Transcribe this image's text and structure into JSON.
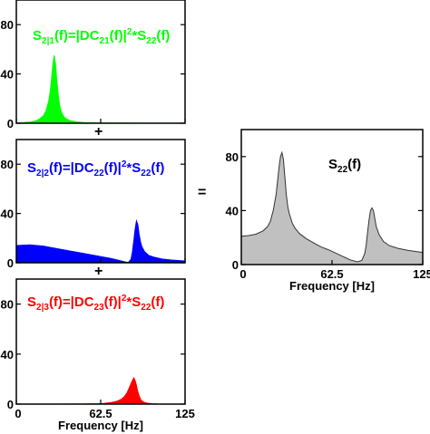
{
  "operators": {
    "plus_1": "+",
    "plus_2": "+",
    "equals": "="
  },
  "chart_data": [
    {
      "type": "area",
      "title_base": "S",
      "title_sub": "2|1",
      "title_mid": "(f)=|DC",
      "title_sub2": "21",
      "title_mid2": "(f)|",
      "title_sup": "2",
      "title_end": "*S",
      "title_sub3": "22",
      "title_tail": "(f)",
      "color": "#00ff00",
      "xlabel": "",
      "ylabel": "",
      "xlim": [
        0,
        125
      ],
      "ylim": [
        0,
        100
      ],
      "xtick_labels": [],
      "ytick_values": [
        0,
        40,
        80
      ],
      "ytick_labels": [
        "0",
        "40",
        "80"
      ],
      "x": [
        0,
        5,
        10,
        14,
        17,
        20,
        22,
        24,
        25,
        26,
        27,
        28,
        29,
        30,
        31,
        32,
        33,
        35,
        37,
        40,
        45,
        50,
        60,
        75,
        90,
        110,
        125
      ],
      "y": [
        0.3,
        0.5,
        0.9,
        1.8,
        3.2,
        6,
        10,
        18,
        25,
        35,
        47,
        55,
        48,
        35,
        24,
        15,
        10,
        5.5,
        3.5,
        2,
        1,
        0.6,
        0.3,
        0.15,
        0.1,
        0.05,
        0.05
      ]
    },
    {
      "type": "area",
      "title_base": "S",
      "title_sub": "2|2",
      "title_mid": "(f)=|DC",
      "title_sub2": "22",
      "title_mid2": "(f)|",
      "title_sup": "2",
      "title_end": "*S",
      "title_sub3": "22",
      "title_tail": "(f)",
      "color": "#0000ff",
      "xlabel": "",
      "ylabel": "",
      "xlim": [
        0,
        125
      ],
      "ylim": [
        0,
        100
      ],
      "xtick_labels": [],
      "ytick_values": [
        0,
        40,
        80
      ],
      "ytick_labels": [
        "0",
        "40",
        "80"
      ],
      "x": [
        0,
        10,
        20,
        30,
        40,
        50,
        60,
        70,
        75,
        80,
        83,
        85,
        86,
        87,
        88,
        89,
        90,
        91,
        92,
        93,
        95,
        98,
        102,
        108,
        115,
        125
      ],
      "y": [
        14,
        14.5,
        13.5,
        11.5,
        9.5,
        7.5,
        5.5,
        3.5,
        2.2,
        0.8,
        0.2,
        3,
        9,
        18,
        27,
        34,
        31,
        23,
        17,
        13,
        9,
        6,
        4.5,
        3,
        2.2,
        1.5
      ]
    },
    {
      "type": "area",
      "title_base": "S",
      "title_sub": "2|3",
      "title_mid": "(f)=|DC",
      "title_sub2": "23",
      "title_mid2": "(f)|",
      "title_sup": "2",
      "title_end": "*S",
      "title_sub3": "22",
      "title_tail": "(f)",
      "color": "#ff0000",
      "xlabel": "Frequency [Hz]",
      "ylabel": "",
      "xlim": [
        0,
        125
      ],
      "ylim": [
        0,
        100
      ],
      "xtick_values": [
        0,
        62.5,
        125
      ],
      "xtick_labels": [
        "0",
        "62.5",
        "125"
      ],
      "ytick_values": [
        0,
        40,
        80
      ],
      "ytick_labels": [
        "0",
        "40",
        "80"
      ],
      "x": [
        0,
        30,
        50,
        60,
        65,
        70,
        75,
        78,
        80,
        82,
        84,
        86,
        87,
        88,
        89,
        90,
        91,
        92,
        93,
        95,
        97,
        100,
        105,
        110,
        125
      ],
      "y": [
        0,
        0,
        0.1,
        0.3,
        0.6,
        1.2,
        2.5,
        4,
        6,
        9,
        14,
        19,
        21,
        19,
        15,
        10,
        6.5,
        4,
        2.5,
        1.3,
        0.7,
        0.3,
        0.1,
        0,
        0
      ]
    },
    {
      "type": "area",
      "title_base": "S",
      "title_sub": "",
      "title_mid": "",
      "title_sub2": "22",
      "title_mid2": "(f)",
      "title_sup": "",
      "title_end": "",
      "title_sub3": "",
      "title_tail": "",
      "color": "#c0c0c0",
      "xlabel": "Frequency [Hz]",
      "ylabel": "",
      "xlim": [
        0,
        125
      ],
      "ylim": [
        0,
        100
      ],
      "xtick_values": [
        0,
        62.5,
        125
      ],
      "xtick_labels": [
        "0",
        "62.5",
        "125"
      ],
      "ytick_values": [
        0,
        40,
        80
      ],
      "ytick_labels": [
        "0",
        "40",
        "80"
      ],
      "x": [
        0,
        5,
        10,
        15,
        18,
        20,
        22,
        24,
        25,
        26,
        27,
        28,
        29,
        30,
        31,
        32,
        33,
        35,
        37,
        40,
        45,
        50,
        55,
        60,
        65,
        70,
        75,
        80,
        83,
        85,
        86,
        87,
        88,
        89,
        90,
        91,
        92,
        93,
        95,
        98,
        102,
        108,
        115,
        125
      ],
      "y": [
        21,
        21.5,
        22.5,
        25,
        28,
        32,
        40,
        52,
        62,
        72,
        80,
        83,
        78,
        65,
        52,
        43,
        38,
        31,
        27,
        23,
        19,
        16,
        13,
        11,
        8.5,
        6,
        3.5,
        2,
        3,
        8,
        14,
        24,
        33,
        40,
        42,
        40,
        34,
        28,
        22,
        17,
        14,
        12,
        10.5,
        9
      ]
    }
  ]
}
